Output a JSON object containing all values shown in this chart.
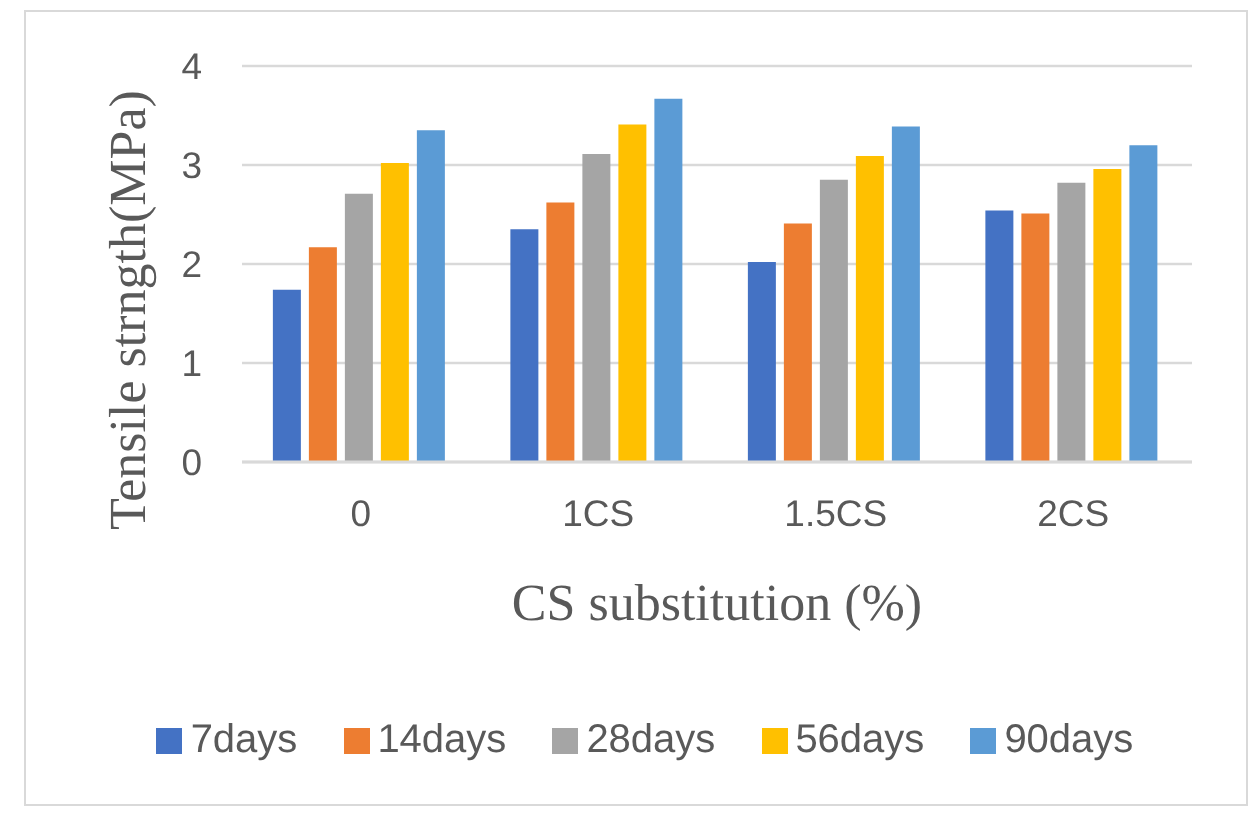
{
  "chart_data": {
    "type": "bar",
    "xlabel": "CS substitution (%)",
    "ylabel": "Tensile strngth(MPa)",
    "categories": [
      "0",
      "1CS",
      "1.5CS",
      "2CS"
    ],
    "series": [
      {
        "name": "7days",
        "color": "#4472c4",
        "values": [
          1.74,
          2.35,
          2.02,
          2.54
        ]
      },
      {
        "name": "14days",
        "color": "#ed7d31",
        "values": [
          2.17,
          2.62,
          2.41,
          2.51
        ]
      },
      {
        "name": "28days",
        "color": "#a5a5a5",
        "values": [
          2.71,
          3.11,
          2.85,
          2.82
        ]
      },
      {
        "name": "56days",
        "color": "#ffc000",
        "values": [
          3.02,
          3.41,
          3.09,
          2.96
        ]
      },
      {
        "name": "90days",
        "color": "#5b9bd5",
        "values": [
          3.35,
          3.67,
          3.39,
          3.2
        ]
      }
    ],
    "ylim": [
      0,
      4
    ],
    "yticks": [
      0,
      1,
      2,
      3,
      4
    ],
    "grid": "y",
    "legend": "bottom"
  }
}
